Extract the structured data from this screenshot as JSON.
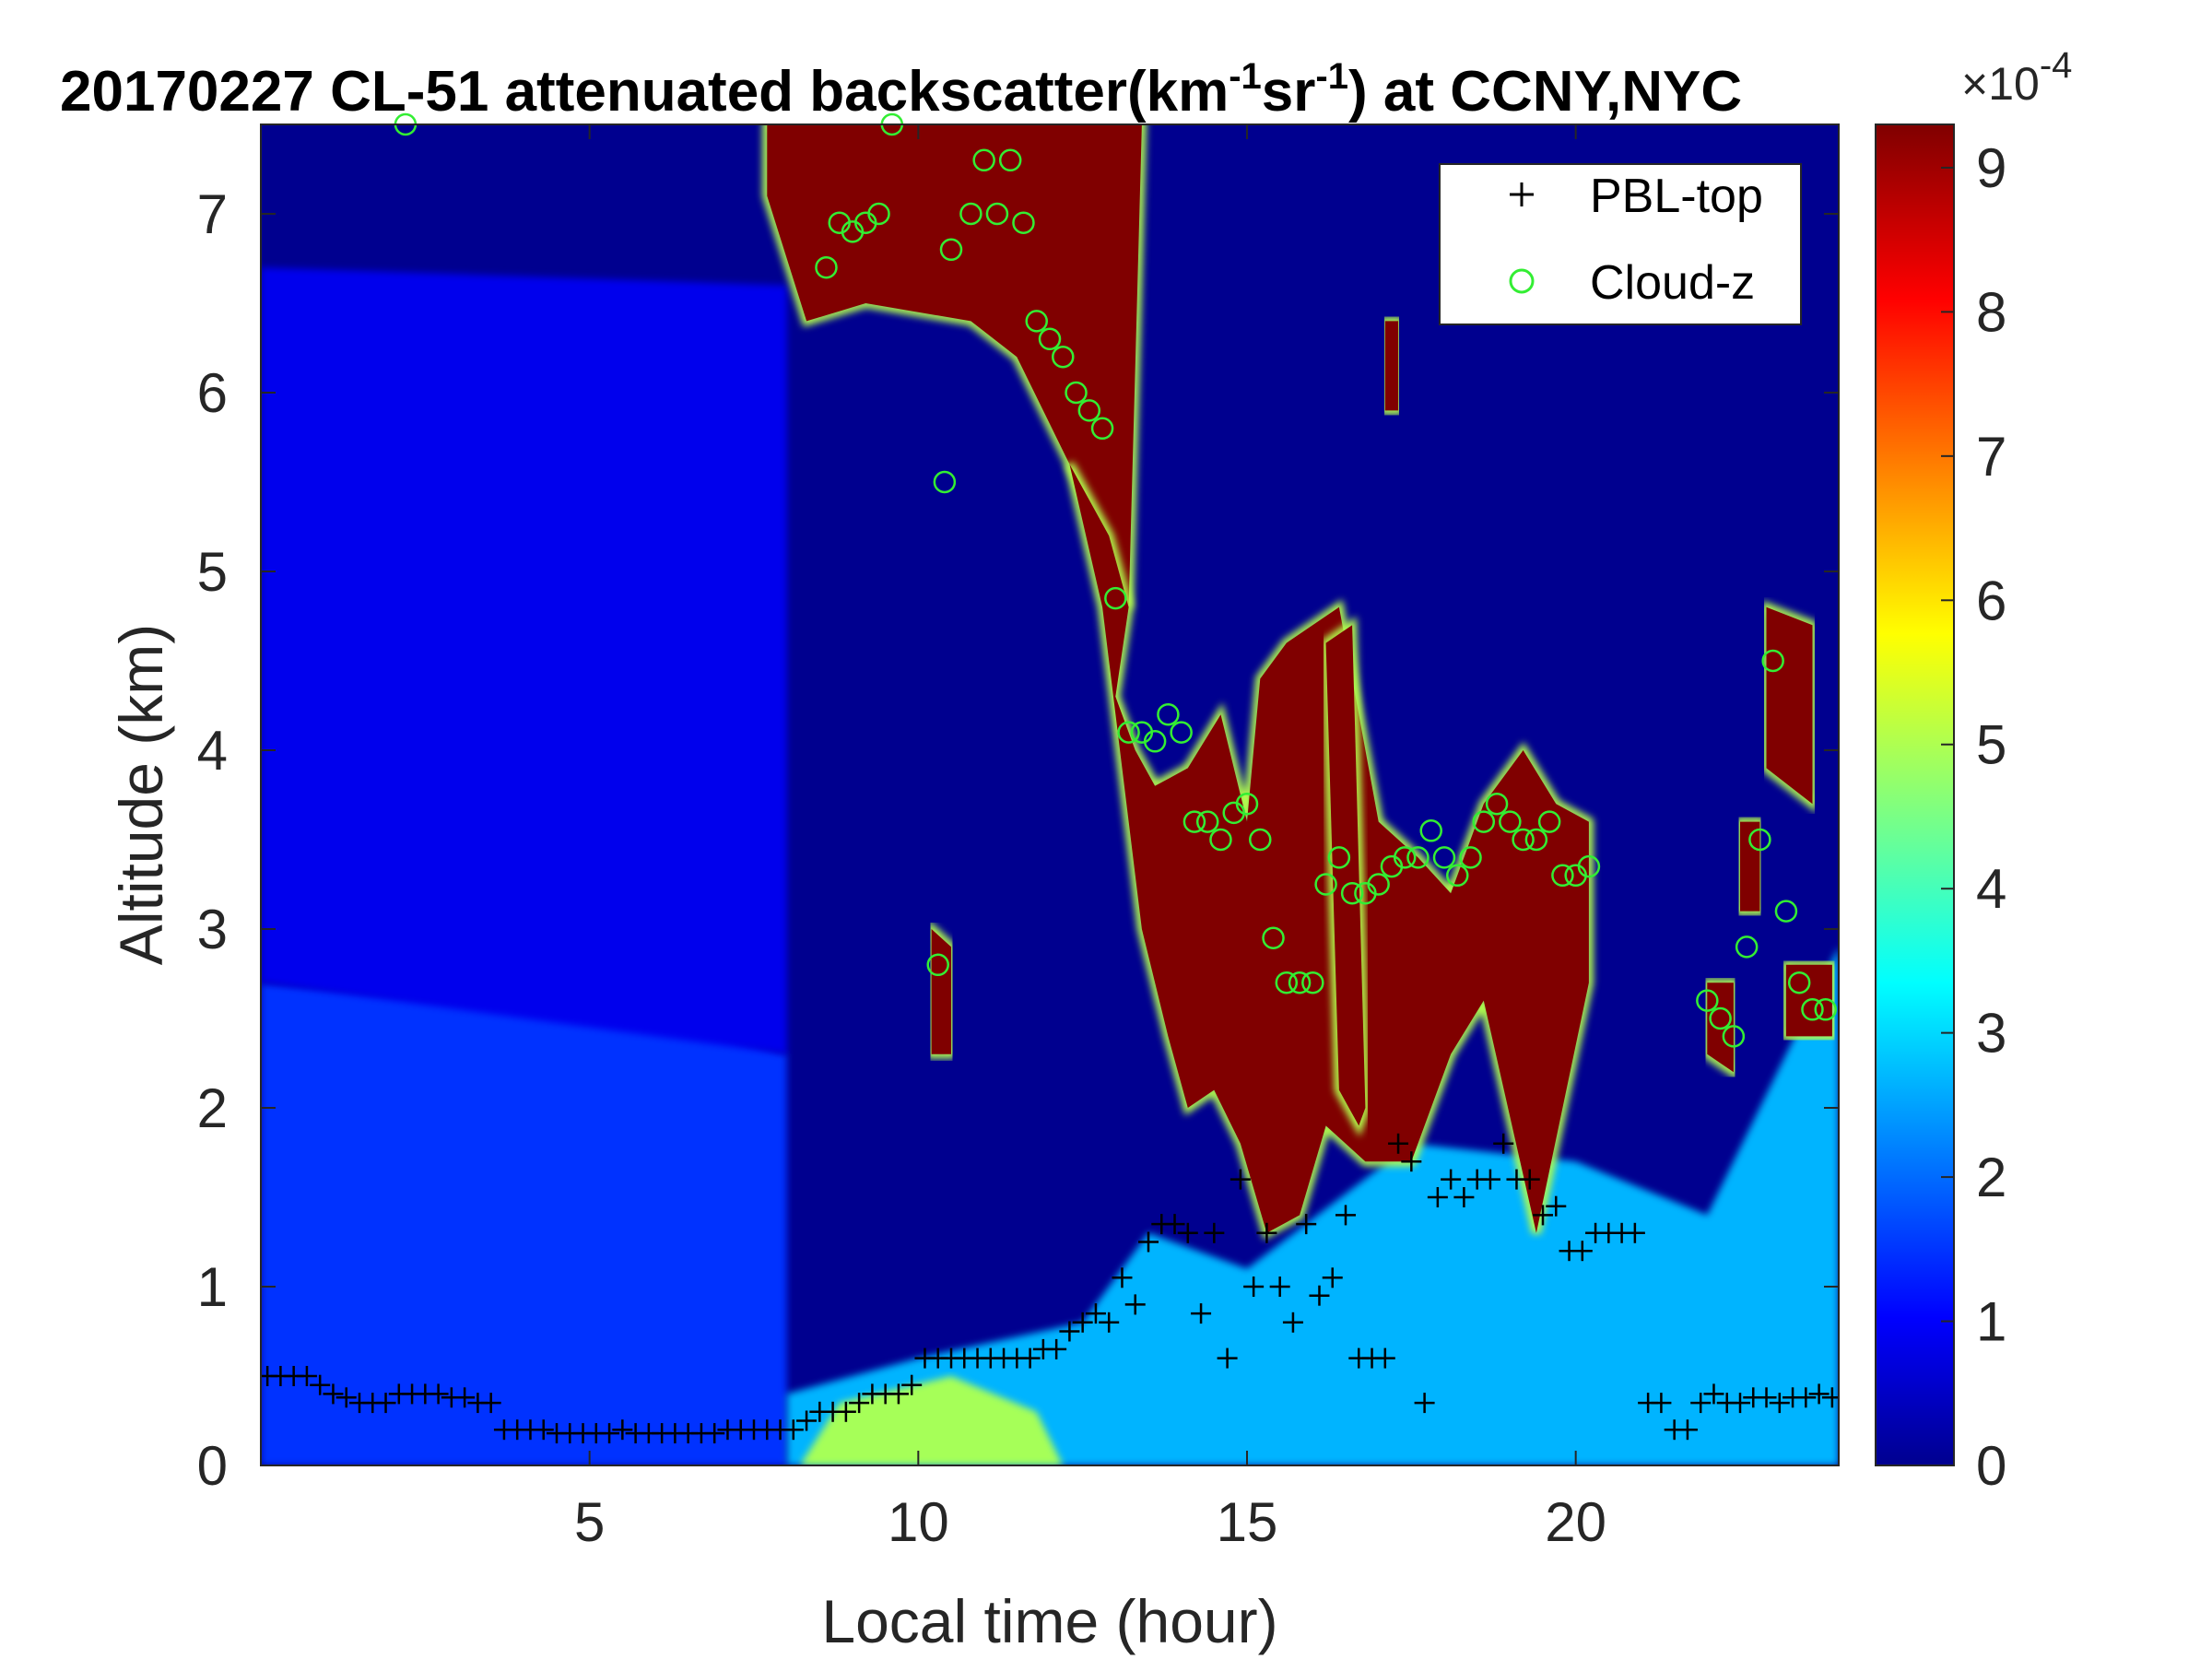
{
  "chart_data": {
    "type": "heatmap",
    "title": {
      "date": "20170227",
      "text_main": "CL-51 attenuated backscatter(km",
      "sup1": "-1",
      "text_mid": "sr",
      "sup2": "-1",
      "text_end": ") at CCNY,NYC"
    },
    "xlabel": "Local time (hour)",
    "ylabel": "Altitude (km)",
    "xlim": [
      0,
      24
    ],
    "ylim": [
      0,
      7.5
    ],
    "x_ticks": [
      5,
      10,
      15,
      20
    ],
    "y_ticks": [
      0,
      1,
      2,
      3,
      4,
      5,
      6,
      7
    ],
    "colorbar": {
      "colormap": "jet",
      "range": [
        0,
        9.3
      ],
      "ticks": [
        0,
        1,
        2,
        3,
        4,
        5,
        6,
        7,
        8,
        9
      ],
      "exponent_label": {
        "base": "×10",
        "exp": "-4"
      }
    },
    "legend": {
      "placement": "top-right",
      "entries": [
        {
          "name": "PBL-top",
          "marker": "+",
          "color": "#000000"
        },
        {
          "name": "Cloud-z",
          "marker": "o",
          "color": "#33ee33"
        }
      ]
    },
    "background_color": "#00008f",
    "heatmap_regions": [
      {
        "name": "aerosol-layer-night",
        "value": 1.6,
        "x": [
          0,
          0,
          3,
          6,
          8,
          8
        ],
        "y": [
          0,
          2.7,
          2.6,
          2.5,
          2.3,
          0
        ]
      },
      {
        "name": "faint-upper-layer-night",
        "value": 1.0,
        "x": [
          0,
          0,
          8,
          8
        ],
        "y": [
          2.7,
          6.7,
          6.6,
          2.3
        ]
      },
      {
        "name": "daytime-boundary-layer",
        "value": 2.8,
        "x": [
          8,
          10,
          12.5,
          13.5,
          15,
          17.5,
          20,
          22,
          24,
          24,
          8
        ],
        "y": [
          0.4,
          0.6,
          0.8,
          1.3,
          1.1,
          1.8,
          1.7,
          1.4,
          2.9,
          0,
          0
        ]
      },
      {
        "name": "surface-layer-bright",
        "value": 5.0,
        "x": [
          8.2,
          8.8,
          10.5,
          11.8,
          12.2,
          8.2
        ],
        "y": [
          0,
          0.35,
          0.5,
          0.3,
          0,
          0
        ]
      },
      {
        "name": "cloud-high-morning",
        "value": 9.3,
        "x": [
          7.7,
          7.7,
          8.3,
          9.2,
          10.8,
          11.5,
          12.3,
          12.9,
          13.2,
          13.4,
          12.5,
          11.8,
          11.4,
          11.3,
          11.0
        ],
        "y": [
          7.5,
          7.1,
          6.4,
          6.5,
          6.4,
          6.2,
          5.6,
          5.2,
          4.8,
          7.5,
          7.5,
          7.5,
          7.5,
          7.5,
          7.5
        ]
      },
      {
        "name": "cloud-descending",
        "value": 9.3,
        "x": [
          12.3,
          12.9,
          13.2,
          13.0,
          13.3,
          13.6,
          14.1,
          14.6,
          15.0,
          15.2,
          15.6,
          16.4,
          17.0,
          17.6,
          18.1,
          18.6,
          19.2,
          19.7,
          20.2,
          20.2,
          19.4,
          18.6,
          18.1,
          17.5,
          16.8,
          16.2,
          15.8,
          15.3,
          14.9,
          14.5,
          14.1,
          13.8,
          13.4,
          12.8
        ],
        "y": [
          5.6,
          5.2,
          4.8,
          4.3,
          4.0,
          3.8,
          3.9,
          4.2,
          3.6,
          4.4,
          4.6,
          4.8,
          3.6,
          3.4,
          3.2,
          3.7,
          4.0,
          3.7,
          3.6,
          2.7,
          1.3,
          2.6,
          2.3,
          1.7,
          1.7,
          1.9,
          1.4,
          1.3,
          1.8,
          2.1,
          2.0,
          2.4,
          3.0,
          4.8
        ]
      },
      {
        "name": "cloud-column-16h",
        "value": 9.3,
        "x": [
          16.2,
          16.6,
          16.8,
          16.7,
          16.4
        ],
        "y": [
          4.6,
          4.7,
          2.0,
          1.9,
          2.1
        ]
      },
      {
        "name": "cloud-thin-10h",
        "value": 9.3,
        "x": [
          10.2,
          10.5,
          10.5,
          10.2
        ],
        "y": [
          3.0,
          2.9,
          2.3,
          2.3
        ]
      },
      {
        "name": "cloud-thin-17h",
        "value": 9.3,
        "x": [
          17.1,
          17.3,
          17.3,
          17.1
        ],
        "y": [
          6.4,
          6.4,
          5.9,
          5.9
        ]
      },
      {
        "name": "cloud-late-upper",
        "value": 9.3,
        "x": [
          22.9,
          23.6,
          23.6,
          22.9
        ],
        "y": [
          4.8,
          4.7,
          3.7,
          3.9
        ]
      },
      {
        "name": "cloud-late-lower",
        "value": 9.3,
        "x": [
          22.0,
          22.4,
          22.4,
          22.0
        ],
        "y": [
          2.7,
          2.7,
          2.2,
          2.3
        ]
      },
      {
        "name": "cloud-late-right",
        "value": 9.3,
        "x": [
          23.2,
          23.9,
          23.9,
          23.2
        ],
        "y": [
          2.8,
          2.8,
          2.4,
          2.4
        ]
      },
      {
        "name": "cloud-late-mid",
        "value": 9.3,
        "x": [
          22.5,
          22.8,
          22.8,
          22.5
        ],
        "y": [
          3.6,
          3.6,
          3.1,
          3.1
        ]
      }
    ],
    "series": [
      {
        "name": "PBL-top",
        "x": [
          0.1,
          0.3,
          0.5,
          0.7,
          0.9,
          1.1,
          1.3,
          1.5,
          1.7,
          1.9,
          2.1,
          2.3,
          2.5,
          2.7,
          2.9,
          3.1,
          3.3,
          3.5,
          3.7,
          3.9,
          4.1,
          4.3,
          4.5,
          4.7,
          4.9,
          5.1,
          5.3,
          5.5,
          5.7,
          5.9,
          6.1,
          6.3,
          6.5,
          6.7,
          6.9,
          7.1,
          7.3,
          7.5,
          7.7,
          7.9,
          8.1,
          8.3,
          8.5,
          8.7,
          8.9,
          9.1,
          9.3,
          9.5,
          9.7,
          9.9,
          10.1,
          10.3,
          10.5,
          10.7,
          10.9,
          11.1,
          11.3,
          11.5,
          11.7,
          11.9,
          12.1,
          12.3,
          12.5,
          12.7,
          12.9,
          13.1,
          13.3,
          13.5,
          13.7,
          13.9,
          14.1,
          14.3,
          14.5,
          14.7,
          14.9,
          15.1,
          15.3,
          15.5,
          15.7,
          15.9,
          16.1,
          16.3,
          16.5,
          16.7,
          16.9,
          17.1,
          17.3,
          17.5,
          17.7,
          17.9,
          18.1,
          18.3,
          18.5,
          18.7,
          18.9,
          19.1,
          19.3,
          19.5,
          19.7,
          19.9,
          20.1,
          20.3,
          20.5,
          20.7,
          20.9,
          21.1,
          21.3,
          21.5,
          21.7,
          21.9,
          22.1,
          22.3,
          22.5,
          22.7,
          22.9,
          23.1,
          23.3,
          23.5,
          23.7,
          23.9
        ],
        "y": [
          0.5,
          0.5,
          0.5,
          0.5,
          0.45,
          0.4,
          0.38,
          0.35,
          0.35,
          0.35,
          0.4,
          0.4,
          0.4,
          0.4,
          0.38,
          0.38,
          0.35,
          0.35,
          0.2,
          0.2,
          0.2,
          0.2,
          0.18,
          0.18,
          0.18,
          0.18,
          0.18,
          0.2,
          0.18,
          0.18,
          0.18,
          0.18,
          0.18,
          0.18,
          0.18,
          0.2,
          0.2,
          0.2,
          0.2,
          0.2,
          0.2,
          0.25,
          0.3,
          0.3,
          0.3,
          0.35,
          0.4,
          0.4,
          0.4,
          0.45,
          0.6,
          0.6,
          0.6,
          0.6,
          0.6,
          0.6,
          0.6,
          0.6,
          0.6,
          0.65,
          0.65,
          0.75,
          0.8,
          0.85,
          0.8,
          1.05,
          0.9,
          1.25,
          1.35,
          1.35,
          1.3,
          0.85,
          1.3,
          0.6,
          1.6,
          1.0,
          1.3,
          1.0,
          0.8,
          1.35,
          0.95,
          1.05,
          1.4,
          0.6,
          0.6,
          0.6,
          1.8,
          1.7,
          0.35,
          1.5,
          1.6,
          1.5,
          1.6,
          1.6,
          1.8,
          1.6,
          1.6,
          1.4,
          1.45,
          1.2,
          1.2,
          1.3,
          1.3,
          1.3,
          1.3,
          0.35,
          0.35,
          0.2,
          0.2,
          0.35,
          0.4,
          0.35,
          0.35,
          0.38,
          0.38,
          0.35,
          0.38,
          0.38,
          0.4,
          0.38
        ]
      },
      {
        "name": "Cloud-z",
        "x": [
          2.2,
          8.6,
          8.8,
          9.0,
          9.2,
          9.4,
          9.6,
          10.5,
          10.8,
          11.0,
          11.2,
          11.4,
          11.6,
          11.8,
          12.0,
          12.2,
          12.4,
          12.6,
          12.8,
          13.0,
          13.2,
          13.4,
          13.6,
          13.8,
          14.0,
          14.2,
          14.4,
          14.6,
          14.8,
          15.0,
          15.2,
          15.4,
          15.6,
          15.8,
          16.0,
          16.2,
          16.4,
          16.6,
          16.8,
          17.0,
          17.2,
          17.4,
          17.6,
          17.8,
          18.0,
          18.2,
          18.4,
          18.6,
          18.8,
          19.0,
          19.2,
          19.4,
          19.6,
          19.8,
          20.0,
          20.2,
          22.0,
          22.2,
          22.4,
          22.6,
          22.8,
          23.0,
          23.2,
          23.4,
          23.6,
          23.8,
          10.3,
          10.4
        ],
        "y": [
          7.5,
          6.7,
          6.95,
          6.9,
          6.95,
          7.0,
          7.5,
          6.8,
          7.0,
          7.3,
          7.0,
          7.3,
          6.95,
          6.4,
          6.3,
          6.2,
          6.0,
          5.9,
          5.8,
          4.85,
          4.1,
          4.1,
          4.05,
          4.2,
          4.1,
          3.6,
          3.6,
          3.5,
          3.65,
          3.7,
          3.5,
          2.95,
          2.7,
          2.7,
          2.7,
          3.25,
          3.4,
          3.2,
          3.2,
          3.25,
          3.35,
          3.4,
          3.4,
          3.55,
          3.4,
          3.3,
          3.4,
          3.6,
          3.7,
          3.6,
          3.5,
          3.5,
          3.6,
          3.3,
          3.3,
          3.35,
          2.6,
          2.5,
          2.4,
          2.9,
          3.5,
          4.5,
          3.1,
          2.7,
          2.55,
          2.55,
          2.8,
          5.5
        ]
      }
    ]
  }
}
